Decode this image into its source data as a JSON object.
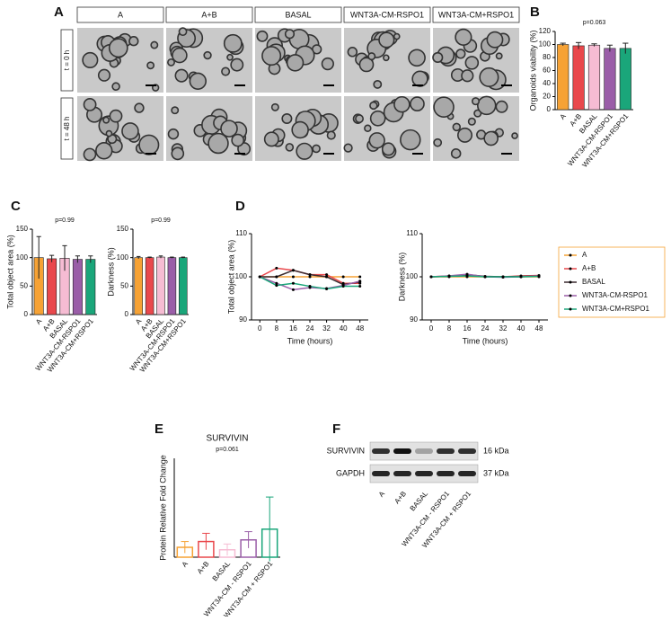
{
  "panel_letters": [
    "A",
    "B",
    "C",
    "D",
    "E",
    "F"
  ],
  "panel_a": {
    "columns": [
      "A",
      "A+B",
      "BASAL",
      "WNT3A-CM-RSPO1",
      "WNT3A-CM+RSPO1"
    ],
    "rows": [
      "t = 0 h",
      "t = 48 h"
    ]
  },
  "chart_data": [
    {
      "type": "bar",
      "ylabel": "Organoids viability (%)",
      "annotation": "p=0.063",
      "categories": [
        "A",
        "A+B",
        "BASAL",
        "WNT3A-CM-RSPO1",
        "WNT3A-CM+RSPO1"
      ],
      "colors": [
        "#f6a235",
        "#e9484c",
        "#f6bcd3",
        "#9a5ea8",
        "#1aa67a"
      ],
      "values": [
        100,
        98,
        99,
        94,
        94
      ],
      "errors": [
        2,
        5,
        2,
        5,
        8
      ],
      "ylim": [
        0,
        120
      ],
      "yticks": [
        0,
        20,
        40,
        60,
        80,
        100,
        120
      ]
    },
    {
      "type": "bar",
      "ylabel": "Total object area (%)",
      "annotation": "p=0.99",
      "categories": [
        "A",
        "A+B",
        "BASAL",
        "WNT3A-CM-RSPO1",
        "WNT3A-CM+RSPO1"
      ],
      "colors": [
        "#f6a235",
        "#e9484c",
        "#f6bcd3",
        "#9a5ea8",
        "#1aa67a"
      ],
      "values": [
        100,
        98,
        99,
        97,
        97
      ],
      "errors": [
        37,
        6,
        22,
        6,
        6
      ],
      "ylim": [
        0,
        150
      ],
      "yticks": [
        0,
        50,
        100,
        150
      ]
    },
    {
      "type": "bar",
      "ylabel": "Darkness (%)",
      "annotation": "p=0.99",
      "categories": [
        "A",
        "A+B",
        "BASAL",
        "WNT3A-CM-RSPO1",
        "WNT3A-CM+RSPO1"
      ],
      "colors": [
        "#f6a235",
        "#e9484c",
        "#f6bcd3",
        "#9a5ea8",
        "#1aa67a"
      ],
      "values": [
        100,
        100,
        101,
        100,
        100
      ],
      "errors": [
        2,
        1,
        2,
        1,
        1
      ],
      "ylim": [
        0,
        150
      ],
      "yticks": [
        0,
        50,
        100,
        150
      ]
    },
    {
      "type": "line",
      "ylabel": "Total object area (%)",
      "xlabel": "Time (hours)",
      "x": [
        0,
        8,
        16,
        24,
        32,
        40,
        48
      ],
      "xlim": [
        -4,
        52
      ],
      "xticks": [
        0,
        8,
        16,
        24,
        32,
        40,
        48
      ],
      "ylim": [
        90,
        110
      ],
      "yticks": [
        90,
        100,
        110
      ],
      "legend": "right",
      "series": [
        {
          "name": "A",
          "color": "#f6a235",
          "values": [
            100,
            100,
            100,
            100,
            100,
            100,
            100
          ]
        },
        {
          "name": "A+B",
          "color": "#e9484c",
          "values": [
            100,
            102,
            101.5,
            100.5,
            100.5,
            98.5,
            98.5
          ]
        },
        {
          "name": "BASAL",
          "color": "#3a2b30",
          "values": [
            100,
            100,
            101.5,
            100.5,
            100,
            98.2,
            98.8
          ]
        },
        {
          "name": "WNT3A-CM-RSPO1",
          "color": "#9a5ea8",
          "values": [
            100,
            98.5,
            97,
            97.5,
            97.3,
            98,
            99
          ]
        },
        {
          "name": "WNT3A-CM+RSPO1",
          "color": "#1aa67a",
          "values": [
            100,
            98,
            98.5,
            97.8,
            97.2,
            97.8,
            97.8
          ]
        }
      ]
    },
    {
      "type": "line",
      "ylabel": "Darkness (%)",
      "xlabel": "Time (hours)",
      "x": [
        0,
        8,
        16,
        24,
        32,
        40,
        48
      ],
      "xlim": [
        -4,
        52
      ],
      "xticks": [
        0,
        8,
        16,
        24,
        32,
        40,
        48
      ],
      "ylim": [
        90,
        110
      ],
      "yticks": [
        90,
        100,
        110
      ],
      "series": [
        {
          "color": "#f6a235",
          "values": [
            100,
            100,
            100,
            100,
            100,
            100,
            100
          ]
        },
        {
          "color": "#e9484c",
          "values": [
            100,
            100.2,
            100.4,
            100,
            100,
            100.2,
            100.3
          ]
        },
        {
          "color": "#3a2b30",
          "values": [
            100,
            100.1,
            100.5,
            100.1,
            100,
            100.1,
            100.2
          ]
        },
        {
          "color": "#9a5ea8",
          "values": [
            100,
            100.2,
            100.6,
            100,
            99.9,
            100,
            100.2
          ]
        },
        {
          "color": "#1aa67a",
          "values": [
            100,
            100.1,
            100.2,
            100,
            100,
            100,
            100.1
          ]
        }
      ]
    },
    {
      "type": "bar",
      "title": "SURVIVIN",
      "ylabel": "Protein Relative Fold Change",
      "annotation": "p=0.061",
      "categories": [
        "A",
        "A+B",
        "BASAL",
        "WNT3A-CM - RSPO1",
        "WNT3A-CM + RSPO1"
      ],
      "colors": [
        "#f6a235",
        "#e9484c",
        "#f6bcd3",
        "#9a5ea8",
        "#1aa67a"
      ],
      "bar_fill": "#ffffff",
      "values": [
        1.2,
        1.9,
        0.9,
        2.1,
        3.4
      ],
      "errors": [
        0.7,
        1.0,
        0.7,
        1.0,
        3.9
      ],
      "ylim": [
        0,
        12
      ]
    }
  ],
  "panel_f": {
    "bands": [
      "SURVIVIN",
      "GAPDH"
    ],
    "sizes": [
      "16 kDa",
      "37 kDa"
    ],
    "lanes": [
      "A",
      "A+B",
      "BASAL",
      "WNT3A-CM - RSPO1",
      "WNT3A-CM + RSPO1"
    ]
  }
}
